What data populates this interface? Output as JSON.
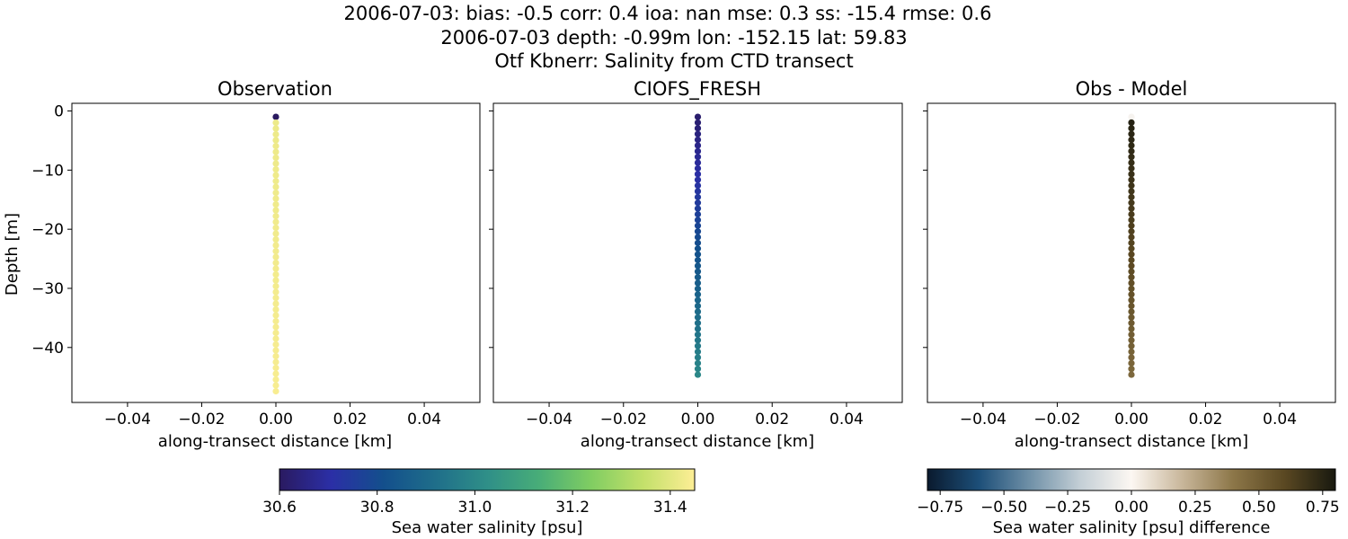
{
  "title_lines": [
    "2006-07-03: bias: -0.5  corr: 0.4  ioa: nan  mse: 0.3  ss: -15.4  rmse: 0.6",
    "2006-07-03 depth: -0.99m lon: -152.15 lat: 59.83",
    "Otf Kbnerr: Salinity from CTD transect"
  ],
  "chart_data": [
    {
      "type": "scatter",
      "title": "Observation",
      "xlabel": "along-transect distance [km]",
      "ylabel": "Depth [m]",
      "xlim": [
        -0.055,
        0.055
      ],
      "ylim": [
        -49.3,
        1.3
      ],
      "xticks": [
        -0.04,
        -0.02,
        0.0,
        0.02,
        0.04
      ],
      "xtick_labels": [
        "−0.04",
        "−0.02",
        "0.00",
        "0.02",
        "0.04"
      ],
      "yticks": [
        0,
        -10,
        -20,
        -30,
        -40
      ],
      "ytick_labels": [
        "0",
        "−10",
        "−20",
        "−30",
        "−40"
      ],
      "colormap": "haline",
      "x": 0.0,
      "depth_start": -0.99,
      "depth_end": -47.4,
      "first_value": 30.6,
      "values_start": 31.42,
      "values_end": 31.44
    },
    {
      "type": "scatter",
      "title": "CIOFS_FRESH",
      "xlabel": "along-transect distance [km]",
      "xlim": [
        -0.055,
        0.055
      ],
      "ylim": [
        -49.3,
        1.3
      ],
      "xticks": [
        -0.04,
        -0.02,
        0.0,
        0.02,
        0.04
      ],
      "xtick_labels": [
        "−0.04",
        "−0.02",
        "0.00",
        "0.02",
        "0.04"
      ],
      "colormap": "haline",
      "x": 0.0,
      "depth_start": -0.99,
      "depth_end": -44.6,
      "values_start": 30.62,
      "values_end": 31.0
    },
    {
      "type": "scatter",
      "title": "Obs - Model",
      "xlabel": "along-transect distance [km]",
      "xlim": [
        -0.055,
        0.055
      ],
      "ylim": [
        -49.3,
        1.3
      ],
      "xticks": [
        -0.04,
        -0.02,
        0.0,
        0.02,
        0.04
      ],
      "xtick_labels": [
        "−0.04",
        "−0.02",
        "0.00",
        "0.02",
        "0.04"
      ],
      "colormap": "diff",
      "x": 0.0,
      "depth_start": -0.99,
      "depth_end": -44.6,
      "first_value": -0.02,
      "values_start": 0.76,
      "values_end": 0.46
    }
  ],
  "colorbars": [
    {
      "label": "Sea water salinity [psu]",
      "range": [
        30.6,
        31.45
      ],
      "ticks": [
        30.6,
        30.8,
        31.0,
        31.2,
        31.4
      ],
      "tick_labels": [
        "30.6",
        "30.8",
        "31.0",
        "31.2",
        "31.4"
      ],
      "colors": [
        "#2a1a60",
        "#2b2fa6",
        "#134f8c",
        "#1f6e8a",
        "#2f8f88",
        "#48ad78",
        "#80cd62",
        "#c3e06a",
        "#fdee95"
      ]
    },
    {
      "label": "Sea water salinity [psu] difference",
      "range": [
        -0.8,
        0.8
      ],
      "ticks": [
        -0.75,
        -0.5,
        -0.25,
        0.0,
        0.25,
        0.5,
        0.75
      ],
      "tick_labels": [
        "−0.75",
        "−0.50",
        "−0.25",
        "0.00",
        "0.25",
        "0.50",
        "0.75"
      ],
      "colors": [
        "#0a1a2e",
        "#1c4e78",
        "#6f90a7",
        "#c4cfd6",
        "#fcf7f2",
        "#c8b69a",
        "#8c7648",
        "#5a4822",
        "#18190f"
      ]
    }
  ]
}
